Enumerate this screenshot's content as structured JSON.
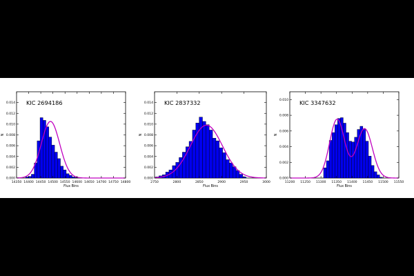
{
  "colors": {
    "bar_fill": "#0000ee",
    "bar_edge": "#000000",
    "curve": "#c000c0",
    "axes": "#000000",
    "background": "#000000",
    "panel": "#ffffff"
  },
  "chart_data": [
    {
      "type": "bar",
      "title": "KIC 2694186",
      "xlabel": "Flux Bins",
      "ylabel": "N",
      "xlim": [
        14350,
        14800
      ],
      "ylim": [
        0,
        0.016
      ],
      "xticks": [
        "14350",
        "14400",
        "14450",
        "14500",
        "14550",
        "14600",
        "14650",
        "14700",
        "14750",
        "14800"
      ],
      "yticks": [
        "0.000",
        "0.002",
        "0.004",
        "0.006",
        "0.008",
        "0.010",
        "0.012",
        "0.014"
      ],
      "bin_width": 12,
      "bins_x": [
        14393,
        14405,
        14417,
        14429,
        14441,
        14453,
        14465,
        14477,
        14489,
        14501,
        14513,
        14525,
        14537,
        14549,
        14561,
        14573,
        14585,
        14597
      ],
      "values": [
        0.0002,
        0.0003,
        0.0007,
        0.0028,
        0.0069,
        0.0112,
        0.0107,
        0.0095,
        0.0076,
        0.0061,
        0.0048,
        0.0036,
        0.0022,
        0.0015,
        0.0008,
        0.0005,
        0.0002,
        0.0001
      ],
      "fit": {
        "kind": "gaussian",
        "components": [
          {
            "mu": 14490,
            "sigma": 38,
            "amp": 0.0105
          }
        ]
      }
    },
    {
      "type": "bar",
      "title": "KIC 2837332",
      "xlabel": "Flux Bins",
      "ylabel": "N",
      "xlim": [
        2750,
        3000
      ],
      "ylim": [
        0,
        0.016
      ],
      "xticks": [
        "2750",
        "2800",
        "2850",
        "2900",
        "2950",
        "3000"
      ],
      "yticks": [
        "0.000",
        "0.002",
        "0.004",
        "0.006",
        "0.008",
        "0.010",
        "0.012",
        "0.014"
      ],
      "bin_width": 7.5,
      "bins_x": [
        2756,
        2763.5,
        2771,
        2778.5,
        2786,
        2793.5,
        2801,
        2808.5,
        2816,
        2823.5,
        2831,
        2838.5,
        2846,
        2853.5,
        2861,
        2868.5,
        2876,
        2883.5,
        2891,
        2898.5,
        2906,
        2913.5,
        2921,
        2928.5,
        2936,
        2943.5,
        2951
      ],
      "values": [
        0.0002,
        0.0004,
        0.0006,
        0.0011,
        0.0015,
        0.0023,
        0.0029,
        0.0038,
        0.0048,
        0.0058,
        0.0068,
        0.0089,
        0.0102,
        0.0113,
        0.0105,
        0.0099,
        0.0089,
        0.0074,
        0.0069,
        0.0056,
        0.0047,
        0.0034,
        0.0028,
        0.0021,
        0.0014,
        0.0007,
        0.0002
      ],
      "fit": {
        "kind": "gaussian",
        "components": [
          {
            "mu": 2866,
            "sigma": 36,
            "amp": 0.0098
          }
        ]
      }
    },
    {
      "type": "bar",
      "title": "KIC 3347632",
      "xlabel": "Flux Bins",
      "ylabel": "N",
      "xlim": [
        11200,
        11550
      ],
      "ylim": [
        0,
        0.011
      ],
      "xticks": [
        "11200",
        "11250",
        "11300",
        "11350",
        "11400",
        "11450",
        "11500",
        "11550"
      ],
      "yticks": [
        "0.000",
        "0.002",
        "0.004",
        "0.006",
        "0.008",
        "0.010"
      ],
      "bin_width": 9,
      "bins_x": [
        11313,
        11322,
        11331,
        11340,
        11349,
        11358,
        11367,
        11376,
        11385,
        11394,
        11403,
        11412,
        11421,
        11430,
        11439,
        11448,
        11457,
        11466,
        11475,
        11484,
        11493
      ],
      "values": [
        0.0013,
        0.0022,
        0.0048,
        0.0058,
        0.0068,
        0.0076,
        0.0077,
        0.007,
        0.0058,
        0.0047,
        0.0046,
        0.0052,
        0.0062,
        0.0066,
        0.0062,
        0.0047,
        0.0028,
        0.0016,
        0.0008,
        0.0004,
        0.0001
      ],
      "fit": {
        "kind": "bimodal",
        "components": [
          {
            "mu": 11352,
            "sigma": 24,
            "amp": 0.0075
          },
          {
            "mu": 11440,
            "sigma": 25,
            "amp": 0.0063
          }
        ]
      }
    }
  ]
}
